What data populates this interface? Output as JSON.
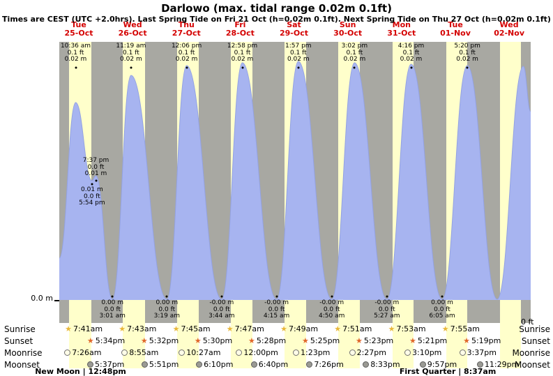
{
  "title": "Darlowo (max. tidal range 0.02m 0.1ft)",
  "subtitle": "Times are CEST (UTC +2.0hrs). Last Spring Tide on Fri 21 Oct (h=0.02m 0.1ft). Next Spring Tide on Thu 27 Oct (h=0.02m 0.1ft)",
  "axis": {
    "left_zero": "0.0 m",
    "right_zero": "0 ft"
  },
  "days": [
    {
      "name": "Tue",
      "date": "25-Oct"
    },
    {
      "name": "Wed",
      "date": "26-Oct"
    },
    {
      "name": "Thu",
      "date": "27-Oct"
    },
    {
      "name": "Fri",
      "date": "28-Oct"
    },
    {
      "name": "Sat",
      "date": "29-Oct"
    },
    {
      "name": "Sun",
      "date": "30-Oct"
    },
    {
      "name": "Mon",
      "date": "31-Oct"
    },
    {
      "name": "Tue",
      "date": "01-Nov"
    },
    {
      "name": "Wed",
      "date": "02-Nov"
    }
  ],
  "chart_data": {
    "type": "area",
    "series_name": "tide-height",
    "units": [
      "m",
      "ft"
    ],
    "high_tides": [
      {
        "day_index": 0,
        "time": "10:36 am",
        "height_ft": "0.1 ft",
        "height_m": "0.02 m"
      },
      {
        "day_index": 1,
        "time": "11:19 am",
        "height_ft": "0.1 ft",
        "height_m": "0.02 m"
      },
      {
        "day_index": 2,
        "time": "12:06 pm",
        "height_ft": "0.1 ft",
        "height_m": "0.02 m"
      },
      {
        "day_index": 3,
        "time": "12:58 pm",
        "height_ft": "0.1 ft",
        "height_m": "0.02 m"
      },
      {
        "day_index": 4,
        "time": "1:57 pm",
        "height_ft": "0.1 ft",
        "height_m": "0.02 m"
      },
      {
        "day_index": 5,
        "time": "3:02 pm",
        "height_ft": "0.1 ft",
        "height_m": "0.02 m"
      },
      {
        "day_index": 6,
        "time": "4:16 pm",
        "height_ft": "0.1 ft",
        "height_m": "0.02 m"
      },
      {
        "day_index": 7,
        "time": "5:20 pm",
        "height_ft": "0.1 ft",
        "height_m": "0.02 m"
      }
    ],
    "low_tides": [
      {
        "day_index": 1,
        "time": "3:01 am",
        "height_ft": "0.0 ft",
        "height_m": "0.00 m"
      },
      {
        "day_index": 2,
        "time": "3:19 am",
        "height_ft": "0.0 ft",
        "height_m": "0.00 m"
      },
      {
        "day_index": 3,
        "time": "3:44 am",
        "height_ft": "0.0 ft",
        "height_m": "-0.00 m"
      },
      {
        "day_index": 4,
        "time": "4:15 am",
        "height_ft": "0.0 ft",
        "height_m": "-0.00 m"
      },
      {
        "day_index": 5,
        "time": "4:50 am",
        "height_ft": "0.0 ft",
        "height_m": "-0.00 m"
      },
      {
        "day_index": 6,
        "time": "5:27 am",
        "height_ft": "0.0 ft",
        "height_m": "-0.00 m"
      },
      {
        "day_index": 7,
        "time": "6:05 am",
        "height_ft": "0.0 ft",
        "height_m": "0.00 m"
      }
    ],
    "secondary_tides": [
      {
        "kind": "high",
        "day_index": 0,
        "time": "7:37 pm",
        "height_ft": "0.0 ft",
        "height_m": "0.01 m"
      },
      {
        "kind": "low",
        "day_index": 0,
        "time": "5:54 pm",
        "height_ft": "0.0 ft",
        "height_m": "0.01 m"
      }
    ]
  },
  "sun_moon": {
    "row_labels": [
      "Sunrise",
      "Sunset",
      "Moonrise",
      "Moonset"
    ],
    "sunrise": [
      "7:41am",
      "7:43am",
      "7:45am",
      "7:47am",
      "7:49am",
      "7:51am",
      "7:53am",
      "7:55am"
    ],
    "sunset": [
      "5:34pm",
      "5:32pm",
      "5:30pm",
      "5:28pm",
      "5:25pm",
      "5:23pm",
      "5:21pm",
      "5:19pm"
    ],
    "moonrise": [
      "7:26am",
      "8:55am",
      "10:27am",
      "12:00pm",
      "1:23pm",
      "2:27pm",
      "3:10pm",
      "3:37pm"
    ],
    "moonset": [
      "5:37pm",
      "5:51pm",
      "6:10pm",
      "6:40pm",
      "7:26pm",
      "8:33pm",
      "9:57pm",
      "11:29pm"
    ],
    "moon_phase_notes": [
      {
        "label": "New Moon | 12:48pm",
        "day_index": 0,
        "time": "12:48pm"
      },
      {
        "label": "First Quarter | 8:37am",
        "day_index": 7,
        "time": "8:37am"
      }
    ]
  },
  "colors": {
    "day_band": "#ffffcb",
    "night_bg": "#a8a8a2",
    "tide_fill": "#a7b4f0",
    "tide_stroke": "#93a2e2",
    "date_red": "#d40000"
  }
}
